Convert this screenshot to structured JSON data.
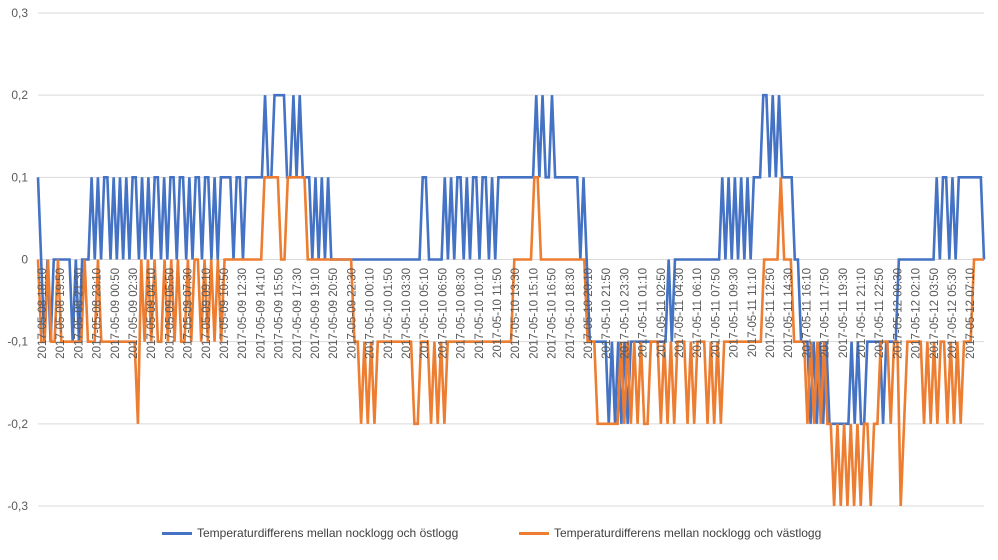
{
  "chart_data": {
    "type": "line",
    "title": "",
    "xlabel": "",
    "ylabel": "",
    "ylim": [
      -0.3,
      0.3
    ],
    "yticks": [
      0.3,
      0.2,
      0.1,
      0,
      -0.1,
      -0.2,
      -0.3
    ],
    "ytick_labels": [
      "0,3",
      "0,2",
      "0,1",
      "0",
      "-0,1",
      "-0,2",
      "-0,3"
    ],
    "xtick_labels": [
      "2017-05-08 18:10",
      "2017-05-08 19:50",
      "2017-05-08 21:30",
      "2017-05-08 23:10",
      "2017-05-09 00:50",
      "2017-05-09 02:30",
      "2017-05-09 04:10",
      "2017-05-09 05:50",
      "2017-05-09 07:30",
      "2017-05-09 09:10",
      "2017-05-09 10:50",
      "2017-05-09 12:30",
      "2017-05-09 14:10",
      "2017-05-09 15:50",
      "2017-05-09 17:30",
      "2017-05-09 19:10",
      "2017-05-09 20:50",
      "2017-05-09 22:30",
      "2017-05-10 00:10",
      "2017-05-10 01:50",
      "2017-05-10 03:30",
      "2017-05-10 05:10",
      "2017-05-10 06:50",
      "2017-05-10 08:30",
      "2017-05-10 10:10",
      "2017-05-10 11:50",
      "2017-05-10 13:30",
      "2017-05-10 15:10",
      "2017-05-10 16:50",
      "2017-05-10 18:30",
      "2017-05-10 20:10",
      "2017-05-10 21:50",
      "2017-05-10 23:30",
      "2017-05-11 01:10",
      "2017-05-11 02:50",
      "2017-05-11 04:30",
      "2017-05-11 06:10",
      "2017-05-11 07:50",
      "2017-05-11 09:30",
      "2017-05-11 11:10",
      "2017-05-11 12:50",
      "2017-05-11 14:30",
      "2017-05-11 16:10",
      "2017-05-11 17:50",
      "2017-05-11 19:30",
      "2017-05-11 21:10",
      "2017-05-11 22:50",
      "2017-05-12 00:30",
      "2017-05-12 02:10",
      "2017-05-12 03:50",
      "2017-05-12 05:30",
      "2017-05-12 07:10"
    ],
    "series": [
      {
        "name": "Temperaturdifferens mellan nocklogg och östlogg",
        "color": "#4472C4",
        "values": [
          0.1,
          0,
          -0.1,
          0,
          -0.1,
          0,
          0,
          0,
          0,
          0,
          0,
          -0.1,
          0,
          -0.1,
          0,
          0,
          0,
          0.1,
          0,
          0.1,
          0,
          0.1,
          0.1,
          0,
          0.1,
          0,
          0.1,
          0,
          0.1,
          0,
          0.1,
          0.1,
          0,
          0.1,
          0,
          0.1,
          0,
          0.1,
          0.1,
          0,
          0.1,
          0,
          0.1,
          0.1,
          0,
          0.1,
          0.1,
          0,
          0.1,
          0,
          0.1,
          0.1,
          0,
          0.1,
          0.1,
          0,
          0.1,
          0,
          0.1,
          0.1,
          0.1,
          0.1,
          0,
          0.1,
          0.1,
          0,
          0.1,
          0.1,
          0.1,
          0.1,
          0.1,
          0.1,
          0.2,
          0.1,
          0.1,
          0.2,
          0.2,
          0.2,
          0.2,
          0.1,
          0.1,
          0.2,
          0.1,
          0.2,
          0.1,
          0.1,
          0.1,
          0,
          0.1,
          0,
          0.1,
          0,
          0.1,
          0,
          0,
          0,
          0,
          0,
          0,
          0,
          0,
          0,
          0,
          0,
          0,
          0,
          0,
          0,
          0,
          0,
          0,
          0,
          0,
          0,
          0,
          0,
          0,
          0,
          0,
          0,
          0,
          0,
          0.1,
          0.1,
          0,
          0,
          0,
          0,
          0,
          0.1,
          0,
          0.1,
          0,
          0.1,
          0.1,
          0,
          0.1,
          0,
          0.1,
          0.1,
          0,
          0.1,
          0.1,
          0,
          0.1,
          0,
          0.1,
          0.1,
          0.1,
          0.1,
          0.1,
          0.1,
          0.1,
          0.1,
          0.1,
          0.1,
          0.1,
          0.1,
          0.2,
          0.1,
          0.2,
          0.1,
          0.1,
          0.2,
          0.1,
          0.1,
          0.1,
          0.1,
          0.1,
          0.1,
          0.1,
          0.1,
          0,
          0.1,
          0,
          -0.1,
          -0.1,
          -0.1,
          -0.1,
          -0.1,
          -0.1,
          -0.2,
          -0.1,
          -0.2,
          -0.1,
          -0.2,
          -0.1,
          -0.2,
          -0.1,
          -0.1,
          -0.1,
          -0.1,
          -0.1,
          -0.1,
          -0.1,
          -0.1,
          -0.1,
          -0.1,
          -0.1,
          -0.1,
          0,
          -0.1,
          0,
          0,
          0,
          0,
          0,
          0,
          0,
          0,
          0,
          0,
          0,
          0,
          0,
          0,
          0,
          0.1,
          0,
          0.1,
          0,
          0.1,
          0,
          0.1,
          0,
          0.1,
          0,
          0.1,
          0.1,
          0.1,
          0.2,
          0.2,
          0.1,
          0.2,
          0.1,
          0.2,
          0.1,
          0.1,
          0.1,
          0.1,
          0,
          0,
          -0.1,
          -0.1,
          -0.1,
          -0.2,
          -0.1,
          -0.2,
          -0.1,
          -0.2,
          -0.1,
          -0.2,
          -0.2,
          -0.2,
          -0.2,
          -0.2,
          -0.2,
          -0.2,
          -0.1,
          -0.2,
          -0.1,
          -0.2,
          -0.2,
          -0.1,
          -0.1,
          -0.1,
          -0.1,
          -0.1,
          -0.2,
          -0.1,
          -0.1,
          -0.1,
          -0.1,
          0,
          0,
          0,
          0,
          0,
          0,
          0,
          0,
          0,
          0,
          0,
          0,
          0.1,
          0,
          0.1,
          0.1,
          0,
          0.1,
          0,
          0.1,
          0.1,
          0.1,
          0.1,
          0.1,
          0.1,
          0.1,
          0.1,
          0
        ]
      },
      {
        "name": "Temperaturdifferens mellan nocklogg och västlogg",
        "color": "#ED7D31",
        "values": [
          0,
          -0.1,
          -0.1,
          0,
          -0.1,
          -0.1,
          0,
          -0.1,
          -0.1,
          -0.1,
          -0.1,
          -0.1,
          -0.1,
          -0.1,
          0,
          -0.1,
          -0.1,
          -0.1,
          0,
          -0.1,
          -0.1,
          -0.1,
          -0.1,
          -0.1,
          -0.1,
          -0.1,
          -0.1,
          -0.1,
          -0.1,
          -0.1,
          -0.2,
          0,
          -0.1,
          0,
          -0.1,
          0,
          -0.1,
          -0.1,
          0,
          -0.1,
          0,
          -0.1,
          0,
          -0.1,
          -0.1,
          0,
          -0.1,
          0,
          0,
          -0.1,
          0,
          -0.1,
          0,
          -0.1,
          0,
          -0.1,
          0,
          0,
          0,
          0,
          0,
          0,
          0,
          0,
          0,
          0,
          0,
          0,
          0.1,
          0.1,
          0.1,
          0.1,
          0.1,
          0,
          0,
          0.1,
          0.1,
          0.1,
          0.1,
          0.1,
          0.1,
          0,
          0,
          0,
          0,
          0,
          0,
          0,
          0,
          0,
          0,
          0,
          0,
          0,
          0,
          -0.1,
          -0.1,
          -0.2,
          -0.1,
          -0.2,
          -0.1,
          -0.2,
          -0.1,
          -0.1,
          -0.1,
          -0.1,
          -0.1,
          -0.1,
          -0.1,
          -0.1,
          -0.1,
          -0.1,
          -0.1,
          -0.2,
          -0.2,
          -0.1,
          -0.1,
          -0.1,
          -0.2,
          -0.1,
          -0.2,
          -0.1,
          -0.2,
          -0.1,
          -0.1,
          -0.1,
          -0.1,
          -0.1,
          -0.1,
          -0.1,
          -0.1,
          -0.1,
          -0.1,
          -0.1,
          -0.1,
          -0.1,
          -0.1,
          -0.1,
          -0.1,
          -0.1,
          -0.1,
          -0.1,
          -0.1,
          0,
          0,
          0,
          0,
          0,
          0,
          0.1,
          0.1,
          0,
          0,
          0,
          0,
          0,
          0,
          0,
          0,
          0,
          0,
          0,
          0,
          0,
          0,
          -0.1,
          -0.1,
          -0.1,
          -0.2,
          -0.2,
          -0.2,
          -0.2,
          -0.2,
          -0.2,
          -0.2,
          -0.1,
          -0.2,
          -0.1,
          -0.2,
          -0.1,
          -0.2,
          -0.1,
          -0.2,
          -0.2,
          -0.1,
          -0.1,
          -0.1,
          -0.2,
          -0.1,
          -0.2,
          -0.1,
          -0.2,
          -0.1,
          -0.1,
          -0.1,
          -0.2,
          -0.1,
          -0.2,
          -0.1,
          -0.1,
          -0.1,
          -0.2,
          -0.1,
          -0.2,
          -0.1,
          -0.2,
          -0.1,
          -0.1,
          -0.1,
          -0.1,
          -0.1,
          -0.1,
          -0.1,
          -0.1,
          -0.1,
          -0.1,
          -0.1,
          -0.1,
          0,
          0,
          0,
          0,
          0,
          0.1,
          0,
          0,
          0,
          -0.1,
          -0.1,
          -0.1,
          -0.1,
          -0.2,
          -0.1,
          -0.2,
          -0.1,
          -0.2,
          -0.1,
          -0.2,
          -0.2,
          -0.3,
          -0.2,
          -0.3,
          -0.2,
          -0.3,
          -0.2,
          -0.3,
          -0.2,
          -0.3,
          -0.2,
          -0.2,
          -0.3,
          -0.2,
          -0.2,
          -0.1,
          -0.1,
          -0.1,
          -0.2,
          -0.1,
          -0.1,
          -0.3,
          -0.2,
          -0.1,
          -0.1,
          -0.1,
          -0.1,
          -0.1,
          -0.2,
          -0.1,
          -0.2,
          -0.1,
          -0.2,
          -0.1,
          -0.1,
          -0.2,
          -0.1,
          -0.2,
          -0.1,
          -0.2,
          -0.1,
          -0.1,
          -0.1,
          0,
          0,
          0,
          0
        ]
      }
    ],
    "legend_position": "bottom",
    "grid": true
  }
}
